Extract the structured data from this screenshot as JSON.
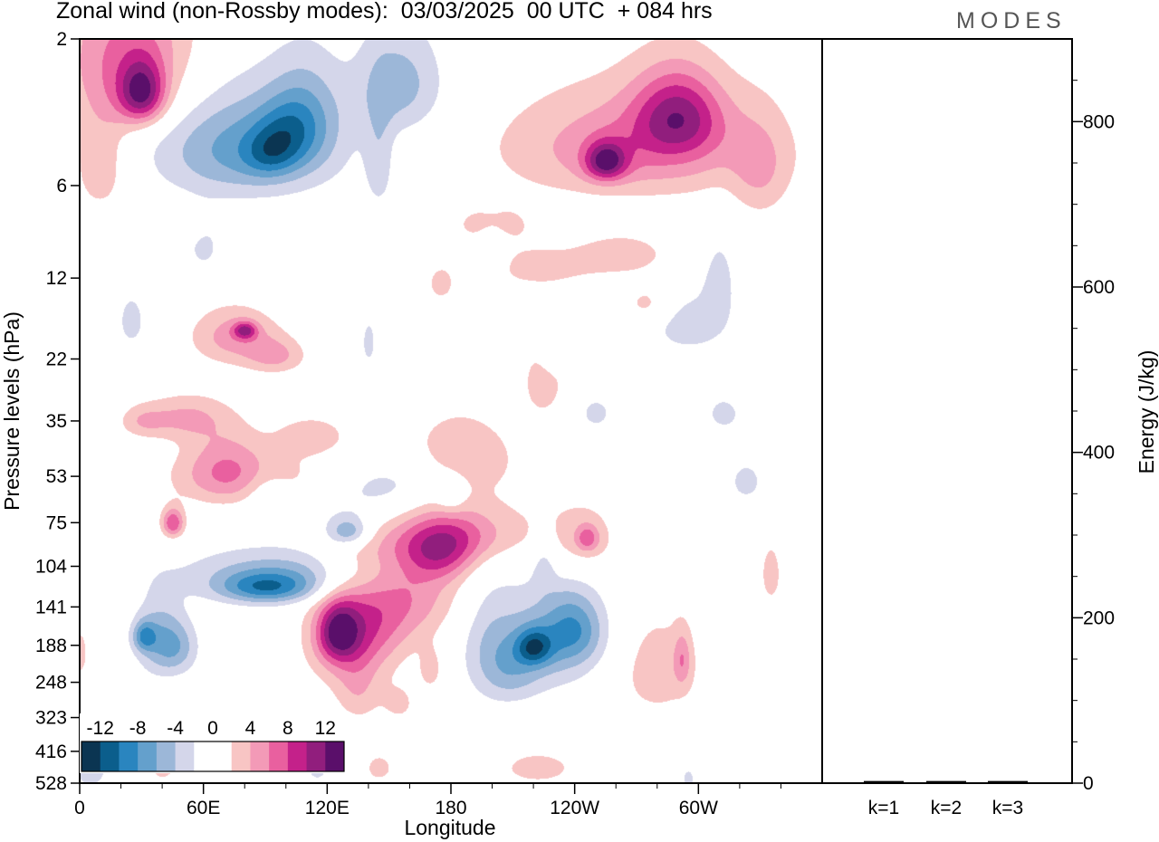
{
  "title": "Zonal wind (non-Rossby modes):  03/03/2025  00 UTC  + 084 hrs",
  "logo_text": "MODES",
  "chart_data": [
    {
      "type": "heatmap",
      "xlabel": "Longitude",
      "ylabel": "Pressure levels (hPa)",
      "x_ticks": [
        "0",
        "60E",
        "120E",
        "180",
        "120W",
        "60W"
      ],
      "y_ticks": [
        "2",
        "6",
        "12",
        "22",
        "35",
        "53",
        "75",
        "104",
        "141",
        "188",
        "248",
        "323",
        "416",
        "528"
      ],
      "grid": false,
      "colorbar": {
        "labels": [
          "-12",
          "-8",
          "-4",
          "0",
          "4",
          "8",
          "12"
        ],
        "colors": [
          "#0b3552",
          "#0b5e8c",
          "#2a85bf",
          "#64a0cc",
          "#9cb7d8",
          "#d4d6ea",
          "#ffffff",
          "#ffffff",
          "#f8c5c4",
          "#f39ab7",
          "#e9609f",
          "#c4218a",
          "#911e7d",
          "#5a0f6a"
        ],
        "placement": "bottom-left"
      },
      "blobs": [
        {
          "lon": 25,
          "lev": 2.2,
          "sl": 24,
          "sv": 1.0,
          "v": 6
        },
        {
          "lon": 30,
          "lev": 3,
          "sl": 8,
          "sv": 0.5,
          "v": 10
        },
        {
          "lon": 10,
          "lev": 5,
          "sl": 10,
          "sv": 1.6,
          "v": 3.5
        },
        {
          "lon": 80,
          "lev": 4.5,
          "sl": 30,
          "sv": 1.3,
          "v": -7
        },
        {
          "lon": 92,
          "lev": 4.7,
          "sl": 9,
          "sv": 0.6,
          "v": -4
        },
        {
          "lon": 110,
          "lev": 3.5,
          "sl": 12,
          "sv": 1.0,
          "v": -4
        },
        {
          "lon": 155,
          "lev": 2.8,
          "sl": 15,
          "sv": 0.8,
          "v": -5
        },
        {
          "lon": 145,
          "lev": 5,
          "sl": 5,
          "sv": 1.5,
          "v": -3
        },
        {
          "lon": 270,
          "lev": 4.5,
          "sl": 45,
          "sv": 1.3,
          "v": 6
        },
        {
          "lon": 255,
          "lev": 5,
          "sl": 7,
          "sv": 0.5,
          "v": 9
        },
        {
          "lon": 290,
          "lev": 3.5,
          "sl": 15,
          "sv": 0.8,
          "v": 8
        },
        {
          "lon": 200,
          "lev": 8,
          "sl": 15,
          "sv": 0.9,
          "v": 3
        },
        {
          "lon": 100,
          "lev": 4,
          "sl": 10,
          "sv": 0.7,
          "v": -3
        },
        {
          "lon": 50,
          "lev": 8,
          "sl": 6,
          "sv": 0.6,
          "v": 2.5
        },
        {
          "lon": 25,
          "lev": 16.5,
          "sl": 5,
          "sv": 2.5,
          "v": -3
        },
        {
          "lon": 75,
          "lev": 18.5,
          "sl": 15,
          "sv": 2.8,
          "v": 5
        },
        {
          "lon": 80,
          "lev": 17.7,
          "sl": 4,
          "sv": 0.8,
          "v": 7
        },
        {
          "lon": 95,
          "lev": 21.5,
          "sl": 10,
          "sv": 2.0,
          "v": 4
        },
        {
          "lon": 140,
          "lev": 19.5,
          "sl": 4,
          "sv": 4,
          "v": -2.5
        },
        {
          "lon": 225,
          "lev": 25.5,
          "sl": 8,
          "sv": 6,
          "v": 3
        },
        {
          "lon": 295,
          "lev": 17,
          "sl": 15,
          "sv": 3,
          "v": -3
        },
        {
          "lon": 275,
          "lev": 14.5,
          "sl": 8,
          "sv": 1.5,
          "v": 3
        },
        {
          "lon": 222,
          "lev": 11,
          "sl": 22,
          "sv": 1.2,
          "v": 3
        },
        {
          "lon": 263,
          "lev": 10,
          "sl": 15,
          "sv": 1.0,
          "v": 3.5
        },
        {
          "lon": 230,
          "lev": 21.5,
          "sl": 5,
          "sv": 2,
          "v": -2.5
        },
        {
          "lon": 175,
          "lev": 12.5,
          "sl": 4,
          "sv": 1,
          "v": 3.5
        },
        {
          "lon": 50,
          "lev": 34,
          "sl": 14,
          "sv": 4,
          "v": 4
        },
        {
          "lon": 70,
          "lev": 48,
          "sl": 14,
          "sv": 10,
          "v": 4
        },
        {
          "lon": 85,
          "lev": 54,
          "sl": 30,
          "sv": 8,
          "v": 3.5
        },
        {
          "lon": 45,
          "lev": 75,
          "sl": 4,
          "sv": 6,
          "v": 8
        },
        {
          "lon": 30,
          "lev": 35,
          "sl": 8,
          "sv": 3,
          "v": 3
        },
        {
          "lon": 90,
          "lev": 58,
          "sl": 8,
          "sv": 6,
          "v": -2.5
        },
        {
          "lon": 140,
          "lev": 66,
          "sl": 28,
          "sv": 12,
          "v": -4
        },
        {
          "lon": 155,
          "lev": 55,
          "sl": 22,
          "sv": 8,
          "v": -3
        },
        {
          "lon": 130,
          "lev": 80,
          "sl": 7,
          "sv": 6,
          "v": -6
        },
        {
          "lon": 100,
          "lev": 110,
          "sl": 35,
          "sv": 16,
          "v": -5
        },
        {
          "lon": 90,
          "lev": 122,
          "sl": 16,
          "sv": 10,
          "v": -7
        },
        {
          "lon": 38,
          "lev": 180,
          "sl": 8,
          "sv": 38,
          "v": -5
        },
        {
          "lon": 31,
          "lev": 175,
          "sl": 4,
          "sv": 14,
          "v": -6
        },
        {
          "lon": 48,
          "lev": 190,
          "sl": 7,
          "sv": 28,
          "v": -4
        },
        {
          "lon": 165,
          "lev": 72,
          "sl": 38,
          "sv": 20,
          "v": 3
        },
        {
          "lon": 185,
          "lev": 82,
          "sl": 20,
          "sv": 12,
          "v": 4
        },
        {
          "lon": 130,
          "lev": 180,
          "sl": 14,
          "sv": 50,
          "v": 5.5
        },
        {
          "lon": 125,
          "lev": 170,
          "sl": 7,
          "sv": 26,
          "v": 8
        },
        {
          "lon": 145,
          "lev": 150,
          "sl": 16,
          "sv": 40,
          "v": 4.5
        },
        {
          "lon": 165,
          "lev": 118,
          "sl": 16,
          "sv": 32,
          "v": 4
        },
        {
          "lon": 175,
          "lev": 95,
          "sl": 12,
          "sv": 14,
          "v": 5
        },
        {
          "lon": 135,
          "lev": 270,
          "sl": 8,
          "sv": 45,
          "v": 3
        },
        {
          "lon": 155,
          "lev": 290,
          "sl": 6,
          "sv": 30,
          "v": 2.5
        },
        {
          "lon": 170,
          "lev": 225,
          "sl": 4,
          "sv": 25,
          "v": 3
        },
        {
          "lon": 228,
          "lev": 183,
          "sl": 18,
          "sv": 50,
          "v": -5
        },
        {
          "lon": 220,
          "lev": 190,
          "sl": 6,
          "sv": 18,
          "v": -7
        },
        {
          "lon": 210,
          "lev": 230,
          "sl": 10,
          "sv": 40,
          "v": -3
        },
        {
          "lon": 240,
          "lev": 165,
          "sl": 10,
          "sv": 30,
          "v": -5
        },
        {
          "lon": 198,
          "lev": 190,
          "sl": 10,
          "sv": 60,
          "v": -3
        },
        {
          "lon": 280,
          "lev": 225,
          "sl": 16,
          "sv": 70,
          "v": 3
        },
        {
          "lon": 292,
          "lev": 208,
          "sl": 3,
          "sv": 30,
          "v": 4
        },
        {
          "lon": 242,
          "lev": 85,
          "sl": 14,
          "sv": 18,
          "v": 3
        },
        {
          "lon": 246,
          "lev": 84,
          "sl": 4,
          "sv": 6,
          "v": 5
        },
        {
          "lon": 187,
          "lev": 45,
          "sl": 18,
          "sv": 10,
          "v": 3
        },
        {
          "lon": 112,
          "lev": 39,
          "sl": 12,
          "sv": 4,
          "v": 3
        },
        {
          "lon": 222,
          "lev": 470,
          "sl": 14,
          "sv": 45,
          "v": 3
        },
        {
          "lon": 145,
          "lev": 470,
          "sl": 7,
          "sv": 50,
          "v": 2.5
        },
        {
          "lon": 40,
          "lev": 430,
          "sl": 7,
          "sv": 80,
          "v": 3
        },
        {
          "lon": 5,
          "lev": 450,
          "sl": 8,
          "sv": 90,
          "v": -3
        },
        {
          "lon": 115,
          "lev": 450,
          "sl": 5,
          "sv": 60,
          "v": -3
        },
        {
          "lon": 0,
          "lev": 200,
          "sl": 3,
          "sv": 30,
          "v": 3
        },
        {
          "lon": 335,
          "lev": 110,
          "sl": 4,
          "sv": 20,
          "v": 3
        },
        {
          "lon": 330,
          "lev": 5.5,
          "sl": 10,
          "sv": 1.5,
          "v": 3
        },
        {
          "lon": 250,
          "lev": 33,
          "sl": 8,
          "sv": 4,
          "v": -2.5
        },
        {
          "lon": 312,
          "lev": 33,
          "sl": 8,
          "sv": 4,
          "v": -2.5
        },
        {
          "lon": 323,
          "lev": 55,
          "sl": 8,
          "sv": 8,
          "v": -2.5
        },
        {
          "lon": 310,
          "lev": 12,
          "sl": 6,
          "sv": 3,
          "v": -2.5
        },
        {
          "lon": 60,
          "lev": 9.5,
          "sl": 7,
          "sv": 1.5,
          "v": -2.5
        },
        {
          "lon": 180,
          "lev": 61,
          "sl": 5,
          "sv": 6,
          "v": -2.5
        },
        {
          "lon": 295,
          "lev": 510,
          "sl": 3,
          "sv": 40,
          "v": -2.5
        },
        {
          "lon": 225,
          "lev": 100,
          "sl": 4,
          "sv": 15,
          "v": -2.5
        },
        {
          "lon": 200,
          "lev": 10,
          "sl": 5,
          "sv": 1.5,
          "v": -2.5
        }
      ]
    },
    {
      "type": "bar",
      "categories": [
        "k=1",
        "k=2",
        "k=3"
      ],
      "values": [
        1.5,
        1.5,
        1.5
      ],
      "ylabel": "Energy (J/kg)",
      "y_ticks": [
        "0",
        "200",
        "400",
        "600",
        "800"
      ],
      "ylim": [
        0,
        900
      ],
      "bar_color": "#000000"
    }
  ]
}
